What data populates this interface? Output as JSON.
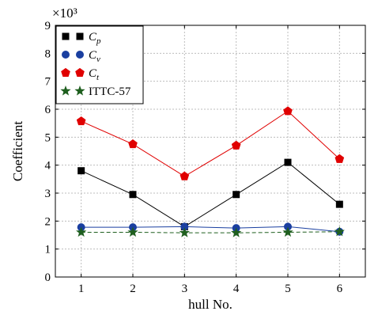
{
  "chart_data": {
    "type": "line",
    "x": [
      1,
      2,
      3,
      4,
      5,
      6
    ],
    "xlabel": "hull No.",
    "ylabel": "Coefficient",
    "scale_label": "×10³",
    "xlim": [
      0.5,
      6.5
    ],
    "ylim": [
      0,
      9
    ],
    "xticks": [
      "1",
      "2",
      "3",
      "4",
      "5",
      "6"
    ],
    "yticks": [
      "0",
      "1",
      "2",
      "3",
      "4",
      "5",
      "6",
      "7",
      "8",
      "9"
    ],
    "grid": true,
    "legend_position": "top-left",
    "series": [
      {
        "name": "Cp",
        "base": "C",
        "sub": "p",
        "color": "#000000",
        "marker": "square",
        "line": "solid",
        "values": [
          3.8,
          2.95,
          1.8,
          2.95,
          4.1,
          2.6
        ]
      },
      {
        "name": "Cv",
        "base": "C",
        "sub": "v",
        "color": "#1a3fa0",
        "marker": "circle",
        "line": "solid",
        "values": [
          1.78,
          1.78,
          1.8,
          1.75,
          1.8,
          1.62
        ]
      },
      {
        "name": "Ct",
        "base": "C",
        "sub": "t",
        "color": "#e00000",
        "marker": "pentagon",
        "line": "solid",
        "values": [
          5.57,
          4.75,
          3.6,
          4.7,
          5.93,
          4.22
        ]
      },
      {
        "name": "ITTC-57",
        "color": "#1f5f1f",
        "marker": "star",
        "line": "dashed",
        "values": [
          1.6,
          1.6,
          1.58,
          1.58,
          1.6,
          1.62
        ]
      }
    ]
  }
}
